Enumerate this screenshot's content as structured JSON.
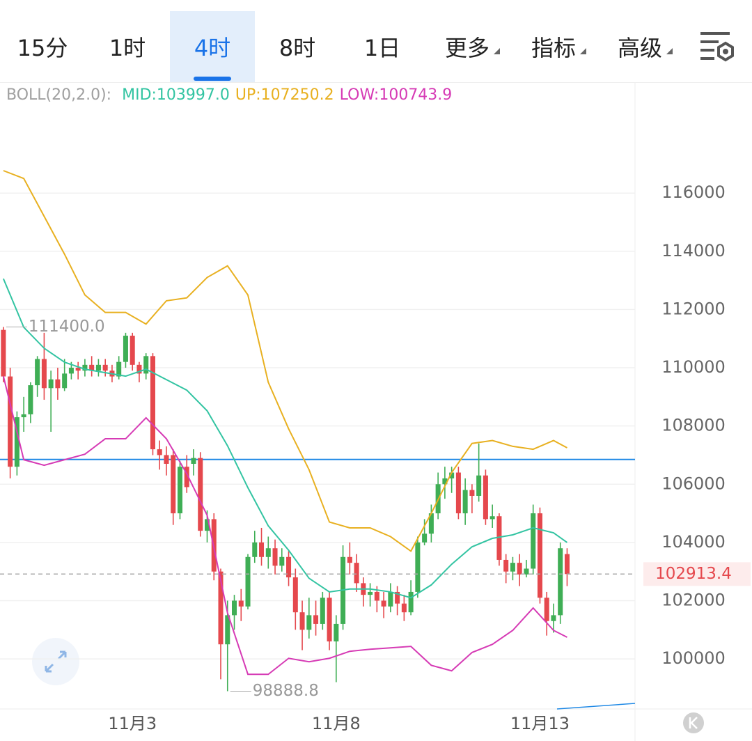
{
  "toolbar": {
    "tabs": [
      "15分",
      "1时",
      "4时",
      "8时",
      "1日"
    ],
    "active": 2,
    "menus": [
      "更多",
      "指标",
      "高级"
    ]
  },
  "chart_data": {
    "type": "candlestick",
    "indicator": "BOLL(20,2.0):",
    "x": [
      0,
      1,
      2,
      3,
      4,
      5,
      6,
      7,
      8,
      9,
      10,
      11,
      12,
      13,
      14,
      15,
      16,
      17,
      18,
      19,
      20,
      21,
      22,
      23,
      24,
      25,
      26,
      27,
      28,
      29,
      30,
      31,
      32,
      33,
      34,
      35,
      36,
      37,
      38,
      39,
      40,
      41,
      42,
      43,
      44,
      45,
      46,
      47,
      48,
      49,
      50,
      51,
      52,
      53,
      54,
      55,
      56,
      57,
      58,
      59,
      60,
      61,
      62,
      63,
      64,
      65,
      66,
      67,
      68,
      69,
      70,
      71,
      72,
      73,
      74,
      75,
      76,
      77,
      78,
      79,
      80,
      81,
      82,
      83
    ],
    "open": [
      111300,
      109700,
      106600,
      108300,
      108400,
      109400,
      110300,
      109300,
      109600,
      109300,
      109800,
      110000,
      109900,
      110100,
      109900,
      110100,
      109900,
      109700,
      110200,
      111100,
      110100,
      109800,
      110400,
      107200,
      107000,
      107000,
      105000,
      106600,
      106700,
      106900,
      104400,
      104800,
      103000,
      100500,
      101500,
      102000,
      101800,
      103500,
      104000,
      103500,
      103800,
      103200,
      103500,
      102800,
      101600,
      101000,
      101500,
      101200,
      102100,
      100600,
      101200,
      103500,
      103300,
      102600,
      102200,
      102300,
      102000,
      101800,
      102300,
      101900,
      101600,
      102300,
      104000,
      104300,
      105000,
      106000,
      106200,
      106400,
      105000,
      105800,
      105600,
      106300,
      104800,
      104900,
      103400,
      103000,
      103300,
      102900,
      103100,
      105000,
      102100,
      101300,
      101500,
      103600
    ],
    "close": [
      109700,
      106600,
      108300,
      108400,
      109400,
      110300,
      109300,
      109600,
      109300,
      109800,
      110000,
      109900,
      110100,
      109900,
      110100,
      109900,
      109700,
      110200,
      111100,
      110100,
      109800,
      110400,
      107200,
      107000,
      106700,
      105000,
      106600,
      105900,
      106900,
      104400,
      104800,
      103000,
      100500,
      101500,
      102000,
      101800,
      103500,
      104000,
      103500,
      103800,
      103200,
      103500,
      102800,
      101600,
      101000,
      101500,
      101200,
      102100,
      100600,
      101200,
      103500,
      103300,
      102600,
      102200,
      102300,
      102000,
      101800,
      102300,
      101900,
      101600,
      102300,
      104000,
      104300,
      105000,
      106000,
      106200,
      106400,
      105000,
      105800,
      105600,
      106300,
      104800,
      104900,
      103400,
      103000,
      103300,
      102900,
      103100,
      105000,
      102100,
      101300,
      101500,
      103800,
      102913.4
    ],
    "high": [
      111400,
      110000,
      108500,
      109000,
      109500,
      110400,
      111200,
      109900,
      110000,
      110300,
      110200,
      110200,
      110300,
      110400,
      110300,
      110300,
      110100,
      110400,
      111200,
      111200,
      110200,
      110500,
      110500,
      107500,
      107300,
      107200,
      106800,
      107000,
      107200,
      107100,
      105100,
      105000,
      103100,
      102000,
      102200,
      102400,
      103600,
      104400,
      104500,
      104200,
      104100,
      103800,
      103700,
      103100,
      102000,
      102100,
      102000,
      102300,
      102300,
      101500,
      103900,
      104000,
      103600,
      102800,
      102600,
      102500,
      102300,
      102600,
      102500,
      102200,
      102700,
      104200,
      104800,
      105300,
      106400,
      106600,
      106600,
      106600,
      106200,
      106000,
      107400,
      106500,
      105300,
      105000,
      103600,
      103500,
      103600,
      103400,
      105300,
      105200,
      102300,
      101900,
      104000,
      103800
    ],
    "low": [
      109500,
      106200,
      106300,
      107800,
      108100,
      109000,
      108900,
      107800,
      108900,
      109200,
      109600,
      109600,
      109700,
      109700,
      109700,
      109700,
      109500,
      109600,
      110000,
      109900,
      109500,
      109600,
      107000,
      106500,
      106300,
      104600,
      104800,
      105700,
      106300,
      104200,
      104000,
      102700,
      99300,
      98888.8,
      101000,
      101300,
      101700,
      103300,
      103200,
      103100,
      102900,
      103000,
      102500,
      101000,
      100300,
      100700,
      100800,
      101000,
      100300,
      99200,
      101000,
      102900,
      102300,
      101800,
      101800,
      101600,
      101400,
      101600,
      101500,
      101300,
      101500,
      102100,
      103900,
      104000,
      104800,
      105500,
      105700,
      104800,
      104600,
      105000,
      105400,
      104600,
      104500,
      103200,
      102600,
      102700,
      102500,
      102800,
      102900,
      101900,
      100800,
      100900,
      101200,
      102500
    ],
    "rise_color": "#3fae55",
    "fall_color": "#e5484d",
    "series": [
      {
        "name": "MID:103997.0",
        "color": "#33c4a2",
        "x": [
          0,
          3,
          6,
          9,
          12,
          15,
          18,
          21,
          24,
          27,
          30,
          33,
          36,
          39,
          42,
          45,
          48,
          51,
          54,
          57,
          60,
          63,
          66,
          69,
          72,
          75,
          78,
          81,
          83
        ],
        "values": [
          113060,
          111390,
          110670,
          110190,
          109950,
          109830,
          109710,
          109950,
          109590,
          109230,
          108520,
          107320,
          105880,
          104570,
          103730,
          102770,
          102300,
          102400,
          102400,
          102300,
          102100,
          102540,
          103250,
          103850,
          104140,
          104260,
          104500,
          104330,
          103997.0
        ]
      },
      {
        "name": "UP:107250.2",
        "color": "#e8b020",
        "x": [
          0,
          3,
          6,
          9,
          12,
          15,
          18,
          21,
          24,
          27,
          30,
          33,
          36,
          39,
          42,
          45,
          48,
          51,
          54,
          57,
          60,
          63,
          66,
          69,
          72,
          75,
          78,
          81,
          83
        ],
        "values": [
          116770,
          116500,
          115200,
          113900,
          112500,
          111900,
          111900,
          111500,
          112300,
          112400,
          113100,
          113500,
          112500,
          109500,
          107900,
          106500,
          104700,
          104500,
          104500,
          104200,
          103700,
          105000,
          106400,
          107400,
          107500,
          107300,
          107200,
          107500,
          107250.2
        ]
      },
      {
        "name": "LOW:100743.9",
        "color": "#d63bb5",
        "x": [
          0,
          3,
          6,
          9,
          12,
          15,
          18,
          21,
          24,
          27,
          30,
          33,
          36,
          39,
          42,
          45,
          48,
          51,
          54,
          57,
          60,
          63,
          66,
          69,
          72,
          75,
          78,
          81,
          83
        ],
        "values": [
          109710,
          106840,
          106650,
          106840,
          107030,
          107560,
          107560,
          108280,
          107560,
          106360,
          104930,
          101580,
          99470,
          99470,
          100020,
          99900,
          100020,
          100260,
          100330,
          100380,
          100430,
          99780,
          99590,
          100220,
          100500,
          100980,
          101750,
          100980,
          100743.9
        ]
      }
    ],
    "high_label": {
      "index": 0,
      "value": 111400,
      "label": "111400.0"
    },
    "low_label": {
      "index": 33,
      "value": 98888.8,
      "label": "98888.8"
    },
    "last_price": 102913.4,
    "hline": {
      "value": 106850,
      "color": "#1e88e5"
    },
    "xlim": [
      -0.5,
      93
    ],
    "xticks": [
      {
        "value": 19,
        "label": "11月3"
      },
      {
        "value": 49,
        "label": "11月8"
      },
      {
        "value": 79,
        "label": "11月13"
      }
    ],
    "ylim": [
      98280,
      119760
    ],
    "yticks": [
      100000,
      102000,
      104000,
      106000,
      108000,
      110000,
      112000,
      114000,
      116000
    ],
    "grid": true
  }
}
